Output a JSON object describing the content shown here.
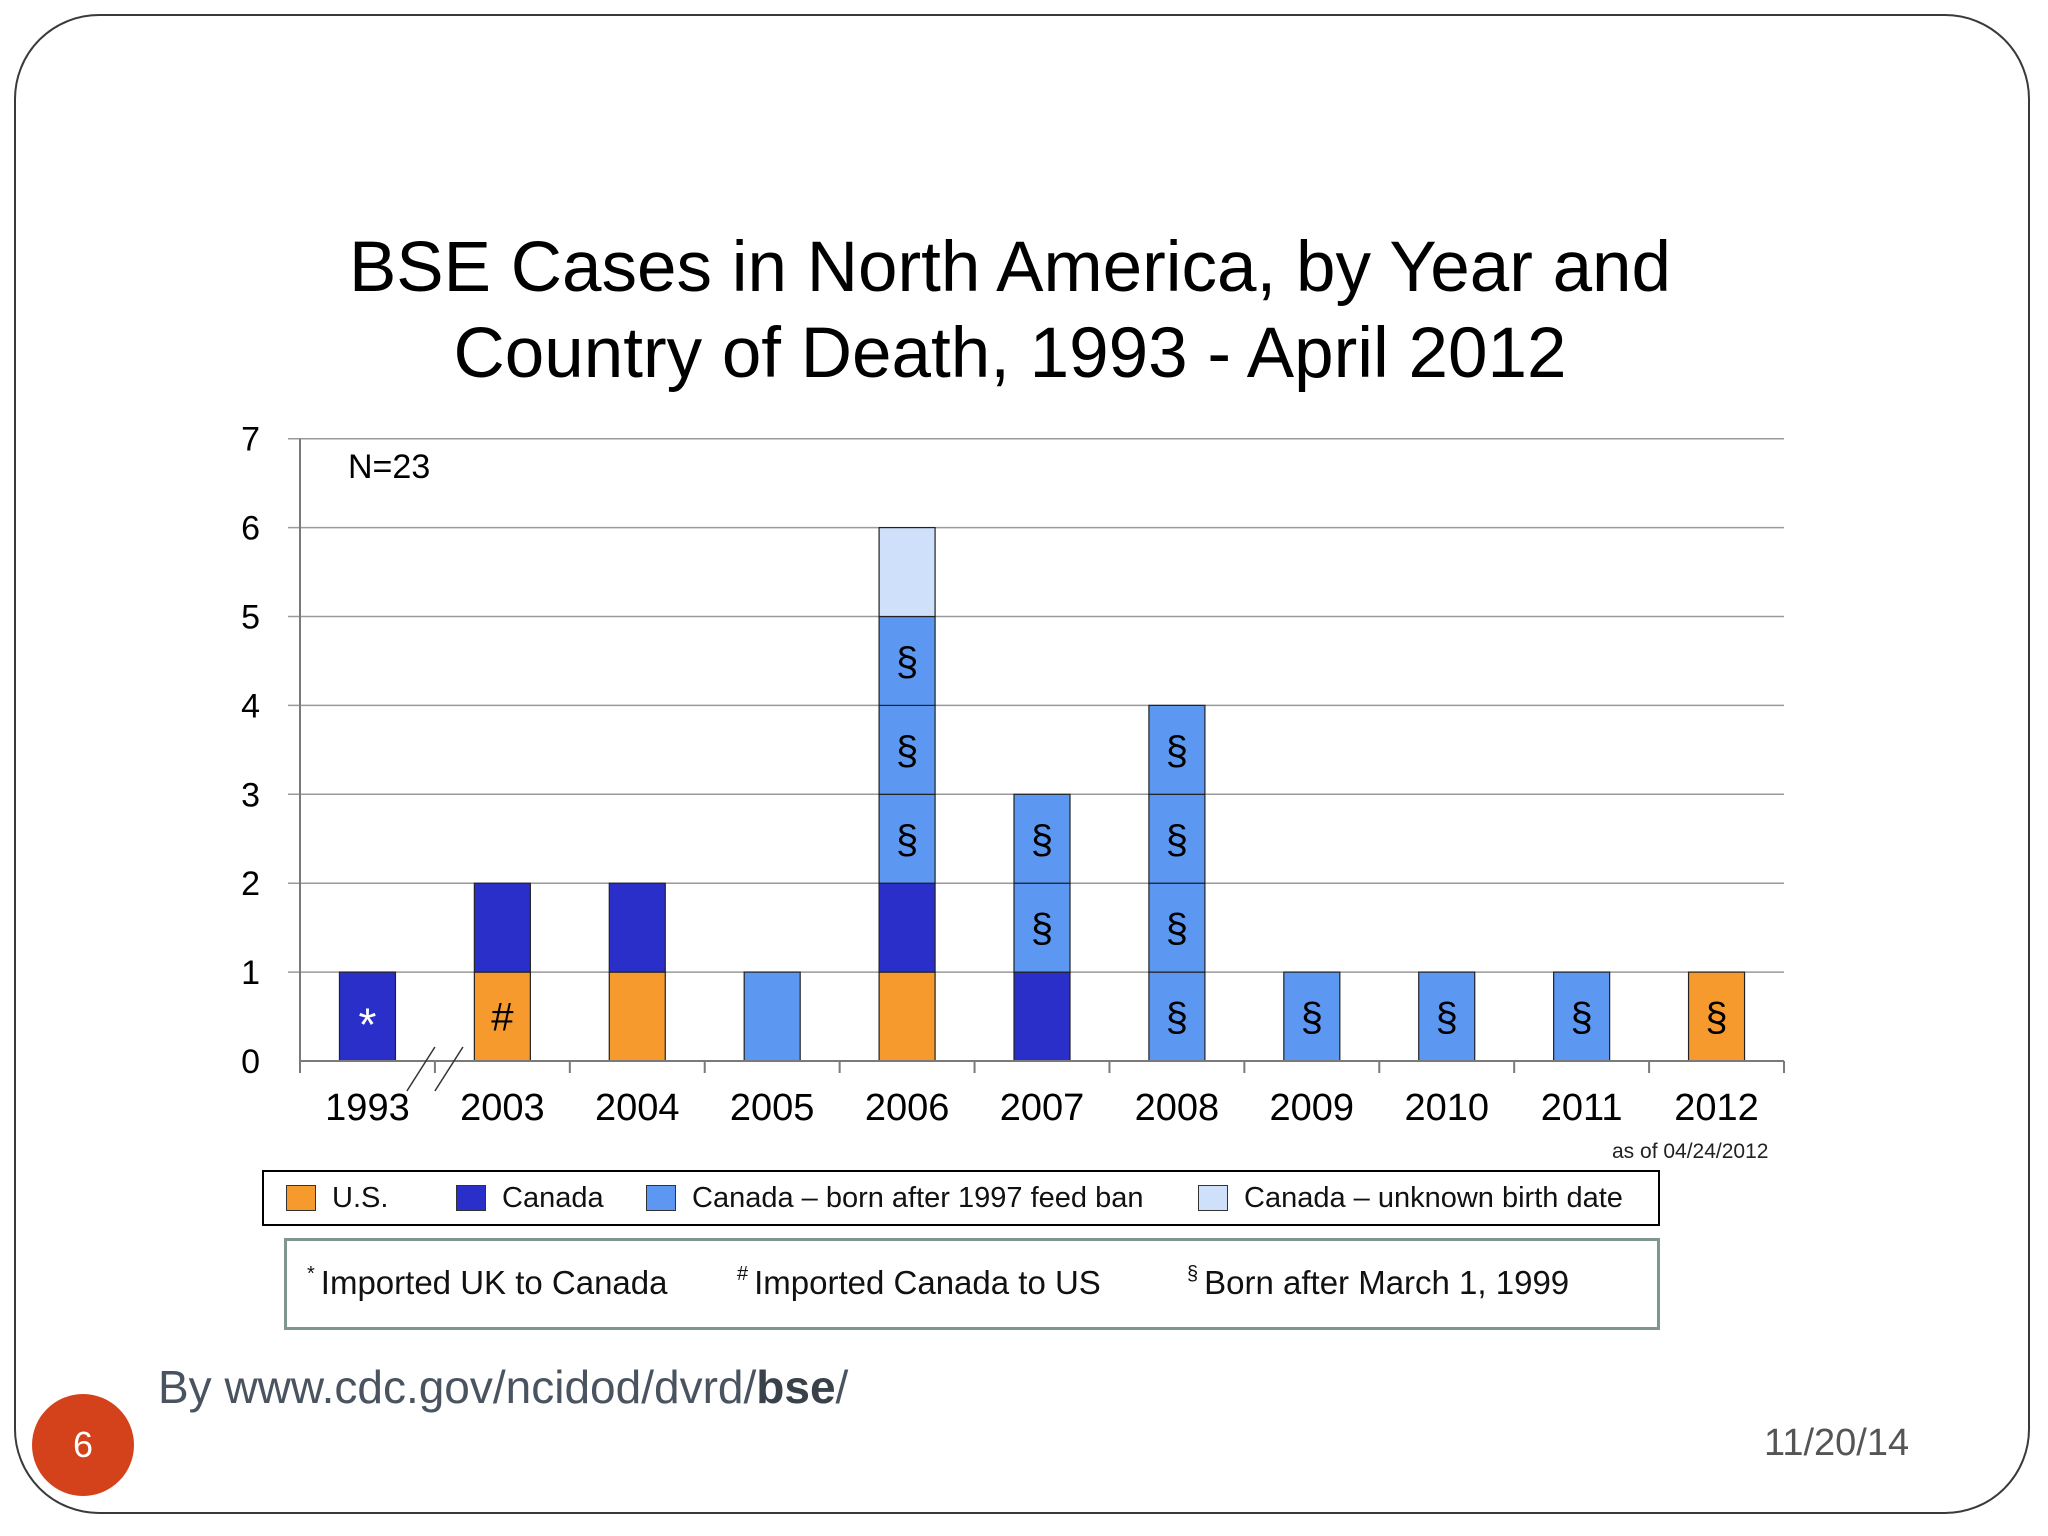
{
  "slide": {
    "page_number": "6",
    "date": "11/20/14",
    "source_prefix": "By www.cdc.gov/ncidod/dvrd/",
    "source_bold": "bse",
    "source_suffix": "/"
  },
  "chart_data": {
    "type": "bar",
    "stacked": true,
    "title_line1": "BSE Cases in North America, by Year and",
    "title_line2": "Country of Death, 1993 - April 2012",
    "annotation": "N=23",
    "as_of": "as of 04/24/2012",
    "ylim": [
      0,
      7
    ],
    "yticks": [
      "0",
      "1",
      "2",
      "3",
      "4",
      "5",
      "6",
      "7"
    ],
    "grid": true,
    "categories": [
      "1993",
      "2003",
      "2004",
      "2005",
      "2006",
      "2007",
      "2008",
      "2009",
      "2010",
      "2011",
      "2012"
    ],
    "series": [
      {
        "name": "U.S.",
        "color": "#f79a2e",
        "values": [
          0,
          1,
          1,
          0,
          1,
          0,
          0,
          0,
          0,
          0,
          1
        ]
      },
      {
        "name": "Canada",
        "color": "#2b2fc9",
        "values": [
          1,
          1,
          1,
          0,
          1,
          1,
          0,
          0,
          0,
          0,
          0
        ]
      },
      {
        "name": "Canada – born after 1997 feed ban",
        "color": "#5c97f2",
        "values": [
          0,
          0,
          0,
          1,
          3,
          2,
          4,
          1,
          1,
          1,
          0
        ]
      },
      {
        "name": "Canada – unknown  birth date",
        "color": "#cfe0fb",
        "values": [
          0,
          0,
          0,
          0,
          1,
          0,
          0,
          0,
          0,
          0,
          0
        ]
      }
    ],
    "segment_marks": [
      {
        "category": "1993",
        "level": 1,
        "symbol": "*"
      },
      {
        "category": "2003",
        "level": 1,
        "symbol": "#"
      },
      {
        "category": "2006",
        "level": 3,
        "symbol": "§"
      },
      {
        "category": "2006",
        "level": 4,
        "symbol": "§"
      },
      {
        "category": "2006",
        "level": 5,
        "symbol": "§"
      },
      {
        "category": "2007",
        "level": 2,
        "symbol": "§"
      },
      {
        "category": "2007",
        "level": 3,
        "symbol": "§"
      },
      {
        "category": "2008",
        "level": 1,
        "symbol": "§"
      },
      {
        "category": "2008",
        "level": 2,
        "symbol": "§"
      },
      {
        "category": "2008",
        "level": 3,
        "symbol": "§"
      },
      {
        "category": "2008",
        "level": 4,
        "symbol": "§"
      },
      {
        "category": "2009",
        "level": 1,
        "symbol": "§"
      },
      {
        "category": "2010",
        "level": 1,
        "symbol": "§"
      },
      {
        "category": "2011",
        "level": 1,
        "symbol": "§"
      },
      {
        "category": "2012",
        "level": 1,
        "symbol": "§"
      }
    ],
    "axis_break": "between 1993 and 2003",
    "legend": [
      {
        "label": "U.S.",
        "color": "#f79a2e"
      },
      {
        "label": "Canada",
        "color": "#2b2fc9"
      },
      {
        "label": "Canada – born after 1997 feed ban",
        "color": "#5c97f2"
      },
      {
        "label": "Canada – unknown  birth date",
        "color": "#cfe0fb"
      }
    ],
    "notes": [
      {
        "symbol": "*",
        "text": "Imported UK to Canada"
      },
      {
        "symbol": "#",
        "text": "Imported Canada to US"
      },
      {
        "symbol": "§",
        "text": "Born after March 1, 1999"
      }
    ]
  }
}
